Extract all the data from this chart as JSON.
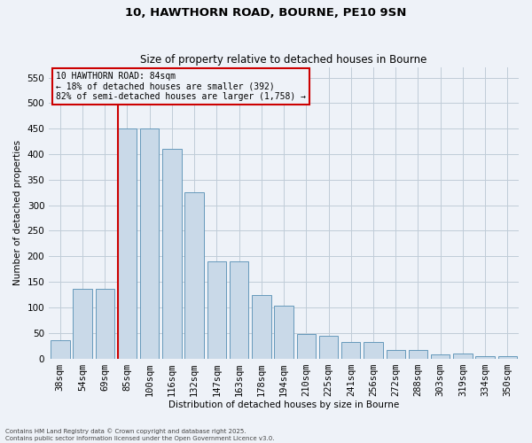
{
  "title_line1": "10, HAWTHORN ROAD, BOURNE, PE10 9SN",
  "title_line2": "Size of property relative to detached houses in Bourne",
  "xlabel": "Distribution of detached houses by size in Bourne",
  "ylabel": "Number of detached properties",
  "categories": [
    "38sqm",
    "54sqm",
    "69sqm",
    "85sqm",
    "100sqm",
    "116sqm",
    "132sqm",
    "147sqm",
    "163sqm",
    "178sqm",
    "194sqm",
    "210sqm",
    "225sqm",
    "241sqm",
    "256sqm",
    "272sqm",
    "288sqm",
    "303sqm",
    "319sqm",
    "334sqm",
    "350sqm"
  ],
  "values": [
    35,
    137,
    137,
    450,
    450,
    410,
    325,
    190,
    190,
    125,
    103,
    47,
    45,
    32,
    32,
    17,
    16,
    8,
    10,
    5,
    5
  ],
  "bar_color": "#c9d9e8",
  "bar_edge_color": "#6699bb",
  "grid_color": "#c0ccd8",
  "vline_color": "#cc0000",
  "annotation_text": "10 HAWTHORN ROAD: 84sqm\n← 18% of detached houses are smaller (392)\n82% of semi-detached houses are larger (1,758) →",
  "annotation_box_edgecolor": "#cc0000",
  "ylim": [
    0,
    570
  ],
  "yticks": [
    0,
    50,
    100,
    150,
    200,
    250,
    300,
    350,
    400,
    450,
    500,
    550
  ],
  "footnote": "Contains HM Land Registry data © Crown copyright and database right 2025.\nContains public sector information licensed under the Open Government Licence v3.0.",
  "background_color": "#eef2f8"
}
